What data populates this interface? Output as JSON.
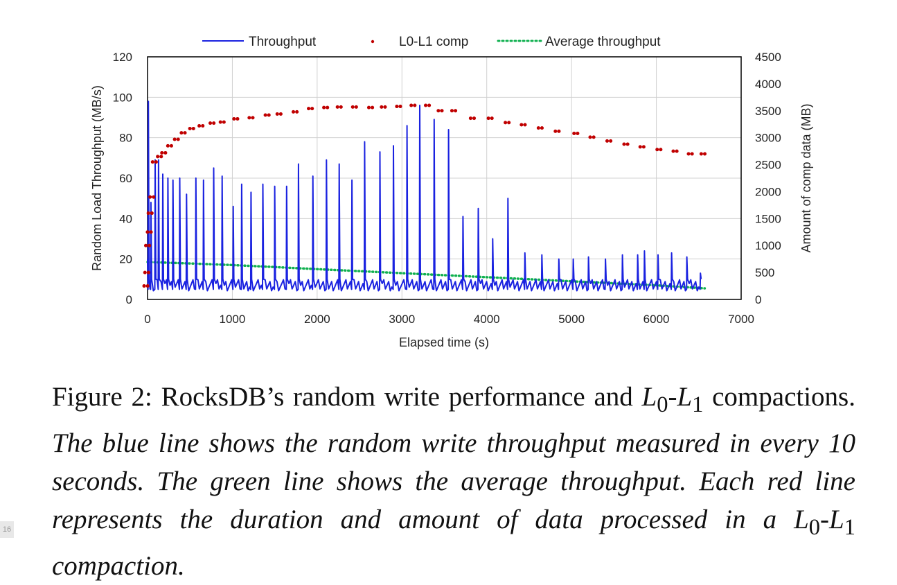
{
  "chart_data": {
    "type": "line",
    "title": "",
    "xlabel": "Elapsed time (s)",
    "ylabel_left": "Random Load Throughput (MB/s)",
    "ylabel_right": "Amount of comp data (MB)",
    "xlim": [
      0,
      7000
    ],
    "ylim_left": [
      0,
      120
    ],
    "ylim_right": [
      0,
      4500
    ],
    "x_ticks": [
      "0",
      "1000",
      "2000",
      "3000",
      "4000",
      "5000",
      "6000",
      "7000"
    ],
    "y_ticks_left": [
      "0",
      "20",
      "40",
      "60",
      "80",
      "100",
      "120"
    ],
    "y_ticks_right": [
      "0",
      "500",
      "1000",
      "1500",
      "2000",
      "2500",
      "3000",
      "3500",
      "4000",
      "4500"
    ],
    "grid": true,
    "legend_position": "top",
    "series": [
      {
        "name": "Throughput",
        "style": "line",
        "color": "#1a22e0",
        "axis": "left",
        "spikes": [
          {
            "x": 10,
            "y": 98
          },
          {
            "x": 40,
            "y": 48
          },
          {
            "x": 90,
            "y": 69
          },
          {
            "x": 130,
            "y": 69
          },
          {
            "x": 180,
            "y": 62
          },
          {
            "x": 240,
            "y": 60
          },
          {
            "x": 300,
            "y": 59
          },
          {
            "x": 380,
            "y": 60
          },
          {
            "x": 460,
            "y": 52
          },
          {
            "x": 570,
            "y": 60
          },
          {
            "x": 660,
            "y": 59
          },
          {
            "x": 780,
            "y": 65
          },
          {
            "x": 880,
            "y": 61
          },
          {
            "x": 1010,
            "y": 46
          },
          {
            "x": 1110,
            "y": 57
          },
          {
            "x": 1220,
            "y": 53
          },
          {
            "x": 1360,
            "y": 57
          },
          {
            "x": 1500,
            "y": 56
          },
          {
            "x": 1640,
            "y": 56
          },
          {
            "x": 1780,
            "y": 67
          },
          {
            "x": 1950,
            "y": 61
          },
          {
            "x": 2110,
            "y": 69
          },
          {
            "x": 2260,
            "y": 67
          },
          {
            "x": 2410,
            "y": 59
          },
          {
            "x": 2560,
            "y": 78
          },
          {
            "x": 2740,
            "y": 73
          },
          {
            "x": 2900,
            "y": 76
          },
          {
            "x": 3060,
            "y": 86
          },
          {
            "x": 3210,
            "y": 96
          },
          {
            "x": 3380,
            "y": 89
          },
          {
            "x": 3550,
            "y": 84
          },
          {
            "x": 3720,
            "y": 41
          },
          {
            "x": 3900,
            "y": 45
          },
          {
            "x": 4070,
            "y": 30
          },
          {
            "x": 4250,
            "y": 50
          },
          {
            "x": 4450,
            "y": 23
          },
          {
            "x": 4650,
            "y": 22
          },
          {
            "x": 4850,
            "y": 20
          },
          {
            "x": 5020,
            "y": 20
          },
          {
            "x": 5200,
            "y": 21
          },
          {
            "x": 5400,
            "y": 20
          },
          {
            "x": 5600,
            "y": 22
          },
          {
            "x": 5780,
            "y": 22
          },
          {
            "x": 5860,
            "y": 24
          },
          {
            "x": 6020,
            "y": 22
          },
          {
            "x": 6180,
            "y": 23
          },
          {
            "x": 6360,
            "y": 21
          },
          {
            "x": 6520,
            "y": 13
          }
        ],
        "baseline": 7
      },
      {
        "name": "L0-L1 comp",
        "style": "dots",
        "color": "#c00000",
        "axis": "right",
        "points": [
          {
            "x": 0,
            "y": 250
          },
          {
            "x": 10,
            "y": 500
          },
          {
            "x": 20,
            "y": 1000
          },
          {
            "x": 40,
            "y": 1250
          },
          {
            "x": 50,
            "y": 1600
          },
          {
            "x": 70,
            "y": 1900
          },
          {
            "x": 100,
            "y": 2550
          },
          {
            "x": 160,
            "y": 2650
          },
          {
            "x": 210,
            "y": 2720
          },
          {
            "x": 280,
            "y": 2850
          },
          {
            "x": 360,
            "y": 2970
          },
          {
            "x": 440,
            "y": 3090
          },
          {
            "x": 540,
            "y": 3170
          },
          {
            "x": 650,
            "y": 3220
          },
          {
            "x": 780,
            "y": 3270
          },
          {
            "x": 900,
            "y": 3290
          },
          {
            "x": 1060,
            "y": 3350
          },
          {
            "x": 1240,
            "y": 3370
          },
          {
            "x": 1430,
            "y": 3420
          },
          {
            "x": 1570,
            "y": 3440
          },
          {
            "x": 1760,
            "y": 3480
          },
          {
            "x": 1940,
            "y": 3540
          },
          {
            "x": 2120,
            "y": 3560
          },
          {
            "x": 2280,
            "y": 3570
          },
          {
            "x": 2460,
            "y": 3570
          },
          {
            "x": 2650,
            "y": 3560
          },
          {
            "x": 2800,
            "y": 3570
          },
          {
            "x": 2980,
            "y": 3580
          },
          {
            "x": 3150,
            "y": 3600
          },
          {
            "x": 3320,
            "y": 3600
          },
          {
            "x": 3470,
            "y": 3500
          },
          {
            "x": 3630,
            "y": 3500
          },
          {
            "x": 3850,
            "y": 3360
          },
          {
            "x": 4060,
            "y": 3360
          },
          {
            "x": 4260,
            "y": 3280
          },
          {
            "x": 4450,
            "y": 3240
          },
          {
            "x": 4650,
            "y": 3180
          },
          {
            "x": 4850,
            "y": 3120
          },
          {
            "x": 5070,
            "y": 3080
          },
          {
            "x": 5260,
            "y": 3010
          },
          {
            "x": 5460,
            "y": 2940
          },
          {
            "x": 5660,
            "y": 2880
          },
          {
            "x": 5850,
            "y": 2830
          },
          {
            "x": 6050,
            "y": 2780
          },
          {
            "x": 6240,
            "y": 2750
          },
          {
            "x": 6420,
            "y": 2700
          },
          {
            "x": 6570,
            "y": 2700
          }
        ]
      },
      {
        "name": "Average throughput",
        "style": "dotted",
        "color": "#10b050",
        "axis": "left",
        "x": [
          0,
          500,
          1000,
          1500,
          2000,
          2500,
          3000,
          3500,
          4000,
          4500,
          5000,
          5500,
          6000,
          6570
        ],
        "y": [
          18.5,
          17.8,
          17.0,
          16.0,
          15.0,
          14.0,
          13.0,
          12.0,
          11.0,
          10.0,
          9.0,
          8.0,
          7.0,
          5.5
        ]
      }
    ]
  },
  "caption": {
    "lead": "Figure 2: RocksDB’s random write performance and ",
    "l0": "L",
    "l0_sub": "0",
    "dash": "-",
    "l1": "L",
    "l1_sub": "1",
    "lead_end": " compactions. ",
    "italic_text": "The blue line shows the random write throughput measured in every 10 seconds. The green line shows the average throughput. Each red line represents the duration and amount of data processed in a ",
    "i_l0": "L",
    "i_l0_sub": "0",
    "i_dash": "-",
    "i_l1": "L",
    "i_l1_sub": "1",
    "italic_end": " compaction."
  },
  "page_number": "16"
}
